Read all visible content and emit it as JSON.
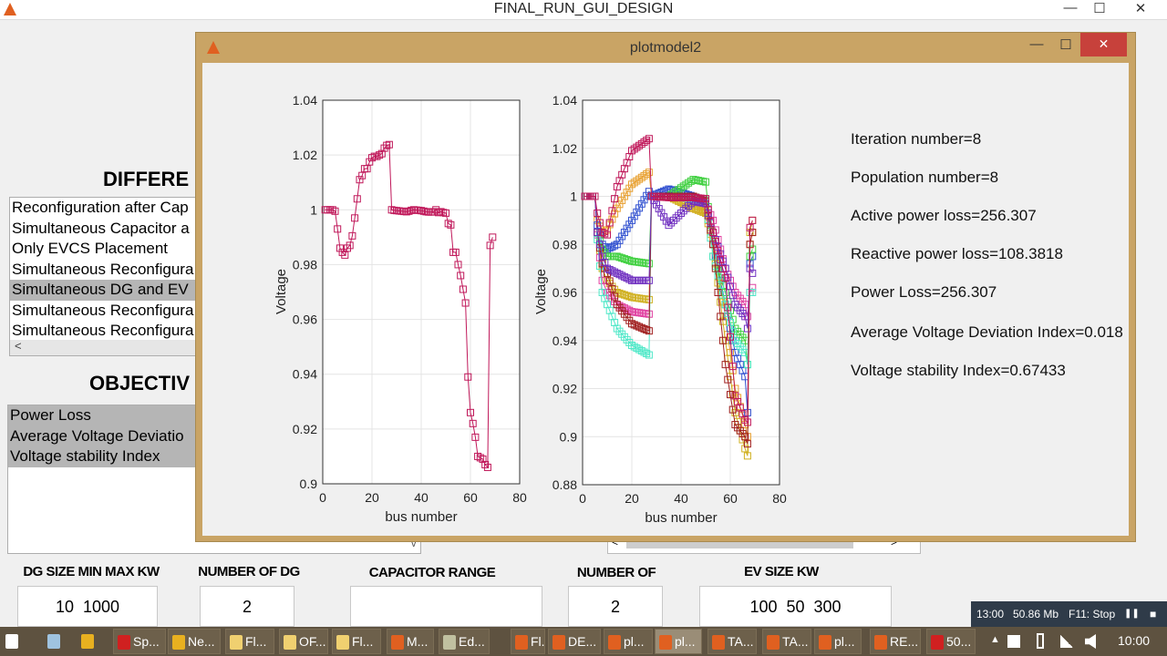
{
  "window": {
    "title": "FINAL_RUN_GUI_DESIGN",
    "minimize": "—",
    "maximize": "☐",
    "close": "✕"
  },
  "left": {
    "heading1": "DIFFERE",
    "cases": [
      "Reconfiguration after Cap",
      "Simultaneous Capacitor a",
      "Only EVCS Placement",
      "Simultaneous Reconfigura",
      "Simultaneous DG and EV",
      "Simultaneous Reconfigura",
      "Simultaneous Reconfigura"
    ],
    "cases_selected_index": 4,
    "scroll_left": "<",
    "heading2": "OBJECTIV",
    "objectives": [
      "Power Loss",
      "Average Voltage Deviatio",
      "Voltage stability Index"
    ],
    "dropdown_arrow": "v"
  },
  "inputs": {
    "dg_size_label": "DG SIZE MIN MAX KW",
    "dg_size_value": "10  1000",
    "num_dg_label": "NUMBER OF DG",
    "num_dg_value": "2",
    "cap_range_label": "CAPACITOR RANGE KVAR",
    "cap_range_value": "",
    "num_cap_label": "NUMBER OF CAPACITOR",
    "num_cap_value": "2",
    "ev_size_label": "EV SIZE KW",
    "ev_size_value": "100  50  300",
    "scroll_left": "<",
    "scroll_right": ">"
  },
  "popup": {
    "title": "plotmodel2",
    "minimize": "—",
    "maximize": "☐",
    "close": "✕",
    "results": [
      "Iteration number=8",
      "Population number=8",
      "Active power loss=256.307",
      "Reactive power loss=108.3818",
      "Power Loss=256.307",
      "Average Voltage Deviation Index=0.018",
      "Voltage stability Index=0.67433"
    ]
  },
  "chart_data": [
    {
      "type": "line",
      "xlabel": "bus number",
      "ylabel": "Voltage",
      "xlim": [
        0,
        80
      ],
      "ylim": [
        0.9,
        1.04
      ],
      "xticks": [
        0,
        20,
        40,
        60,
        80
      ],
      "yticks": [
        0.9,
        0.92,
        0.94,
        0.96,
        0.98,
        1,
        1.02,
        1.04
      ],
      "grid": true,
      "marker": "square",
      "series": [
        {
          "color": "#c0185a",
          "x": [
            1,
            2,
            3,
            4,
            5,
            6,
            7,
            8,
            9,
            10,
            11,
            12,
            13,
            14,
            15,
            16,
            17,
            18,
            19,
            20,
            21,
            22,
            23,
            24,
            25,
            26,
            27,
            28,
            29,
            30,
            31,
            32,
            33,
            34,
            35,
            36,
            37,
            38,
            39,
            40,
            41,
            42,
            43,
            44,
            45,
            46,
            47,
            48,
            49,
            50,
            51,
            52,
            53,
            54,
            55,
            56,
            57,
            58,
            59,
            60,
            61,
            62,
            63,
            64,
            65,
            66,
            67,
            68,
            69
          ],
          "y": [
            1.0,
            1.0,
            1.0,
            1.0,
            0.9995,
            0.993,
            0.986,
            0.9845,
            0.9835,
            0.986,
            0.987,
            0.9905,
            0.997,
            1.004,
            1.011,
            1.0125,
            1.015,
            1.015,
            1.0175,
            1.019,
            1.0195,
            1.0195,
            1.02,
            1.0205,
            1.0225,
            1.0235,
            1.0238,
            1.0,
            0.9998,
            0.9997,
            0.9996,
            0.9995,
            0.9994,
            0.9993,
            0.9995,
            0.9998,
            1.0,
            0.9999,
            0.9998,
            0.9997,
            0.9995,
            0.9993,
            0.9992,
            0.9992,
            0.9993,
            1.0,
            0.999,
            0.9993,
            0.999,
            0.9988,
            0.995,
            0.9945,
            0.9845,
            0.9845,
            0.98,
            0.976,
            0.971,
            0.966,
            0.939,
            0.926,
            0.922,
            0.917,
            0.91,
            0.9095,
            0.909,
            0.907,
            0.906,
            0.987,
            0.99
          ]
        }
      ]
    },
    {
      "type": "line",
      "xlabel": "bus number",
      "ylabel": "Voltage",
      "xlim": [
        0,
        80
      ],
      "ylim": [
        0.88,
        1.04
      ],
      "xticks": [
        0,
        20,
        40,
        60,
        80
      ],
      "yticks": [
        0.88,
        0.9,
        0.92,
        0.94,
        0.96,
        0.98,
        1,
        1.02,
        1.04
      ],
      "grid": true,
      "marker": "square",
      "x": [
        1,
        5,
        6,
        8,
        10,
        14,
        20,
        27,
        28,
        35,
        45,
        50,
        53,
        58,
        62,
        66,
        67,
        68,
        69
      ],
      "series": [
        {
          "color": "#e8a030",
          "y": [
            1,
            1,
            0.99,
            0.985,
            0.986,
            0.995,
            1.005,
            1.01,
            1.0,
            1.0,
            0.995,
            0.994,
            0.982,
            0.95,
            0.92,
            0.905,
            0.9,
            0.98,
            0.985
          ]
        },
        {
          "color": "#3050d0",
          "y": [
            1,
            1,
            0.988,
            0.98,
            0.978,
            0.98,
            0.99,
            1.002,
            1.0,
            1.003,
            1.0,
            0.998,
            0.98,
            0.955,
            0.935,
            0.925,
            0.91,
            0.972,
            0.975
          ]
        },
        {
          "color": "#40d040",
          "y": [
            1,
            1,
            0.985,
            0.978,
            0.975,
            0.975,
            0.973,
            0.972,
            1.0,
            1.0,
            1.007,
            1.006,
            0.975,
            0.96,
            0.945,
            0.94,
            0.93,
            0.975,
            0.978
          ]
        },
        {
          "color": "#d0b020",
          "y": [
            1,
            1,
            0.985,
            0.97,
            0.965,
            0.96,
            0.958,
            0.957,
            1.0,
            1.0,
            0.995,
            0.993,
            0.98,
            0.94,
            0.91,
            0.895,
            0.892,
            0.985,
            0.99
          ]
        },
        {
          "color": "#e040a0",
          "y": [
            1,
            1,
            0.984,
            0.965,
            0.96,
            0.955,
            0.952,
            0.951,
            1.0,
            1.0,
            0.999,
            0.997,
            0.99,
            0.97,
            0.96,
            0.955,
            0.95,
            0.96,
            0.962
          ]
        },
        {
          "color": "#50e8c8",
          "y": [
            1,
            1,
            0.982,
            0.96,
            0.955,
            0.945,
            0.938,
            0.934,
            1.0,
            1.0,
            0.999,
            0.998,
            0.975,
            0.955,
            0.94,
            0.935,
            0.93,
            0.96,
            0.96
          ]
        },
        {
          "color": "#a02020",
          "y": [
            1,
            1,
            0.985,
            0.972,
            0.968,
            0.955,
            0.947,
            0.944,
            1.0,
            1.0,
            1.0,
            0.998,
            0.98,
            0.93,
            0.905,
            0.9,
            0.897,
            0.98,
            0.985
          ]
        },
        {
          "color": "#7030c0",
          "y": [
            1,
            1,
            0.985,
            0.975,
            0.97,
            0.968,
            0.965,
            0.965,
            1.0,
            0.988,
            0.998,
            0.997,
            0.985,
            0.97,
            0.955,
            0.95,
            0.945,
            0.97,
            0.968
          ]
        },
        {
          "color": "#c0185a",
          "y": [
            1,
            1,
            0.993,
            0.985,
            0.984,
            1.004,
            1.019,
            1.024,
            1.0,
            0.9995,
            0.9995,
            0.999,
            0.985,
            0.966,
            0.917,
            0.907,
            0.906,
            0.987,
            0.99
          ]
        }
      ]
    }
  ],
  "recorder": {
    "time": "13:00",
    "size": "50.86 Mb",
    "stop": "F11: Stop",
    "pause": "❚❚",
    "stop_icon": "■"
  },
  "taskbar": {
    "items": [
      {
        "label": "",
        "icon": "start-icon",
        "color": "#ffffff"
      },
      {
        "label": "",
        "icon": "file-explorer-icon",
        "color": "#9fc3e0"
      },
      {
        "label": "",
        "icon": "chrome-icon",
        "color": "#e8b020"
      },
      {
        "label": "Sp...",
        "icon": "opera-icon",
        "color": "#d02020"
      },
      {
        "label": "Ne...",
        "icon": "chrome-icon",
        "color": "#e8b020"
      },
      {
        "label": "Fl...",
        "icon": "folder-icon",
        "color": "#f0d070"
      },
      {
        "label": "OF...",
        "icon": "folder-icon",
        "color": "#f0d070"
      },
      {
        "label": "Fl...",
        "icon": "folder-icon",
        "color": "#f0d070"
      },
      {
        "label": "M...",
        "icon": "matlab-icon",
        "color": "#e06020"
      },
      {
        "label": "Ed...",
        "icon": "editor-icon",
        "color": "#c0c0a0"
      },
      {
        "label": "Fl...",
        "icon": "matlab-figure-icon",
        "color": "#e06020"
      },
      {
        "label": "DE...",
        "icon": "matlab-figure-icon",
        "color": "#e06020"
      },
      {
        "label": "pl...",
        "icon": "matlab-figure-icon",
        "color": "#e06020"
      },
      {
        "label": "pl...",
        "icon": "matlab-figure-icon",
        "color": "#e06020",
        "active": true
      },
      {
        "label": "TA...",
        "icon": "matlab-figure-icon",
        "color": "#e06020"
      },
      {
        "label": "TA...",
        "icon": "matlab-figure-icon",
        "color": "#e06020"
      },
      {
        "label": "pl...",
        "icon": "matlab-figure-icon",
        "color": "#e06020"
      },
      {
        "label": "RE...",
        "icon": "matlab-figure-icon",
        "color": "#e06020"
      },
      {
        "label": "50...",
        "icon": "pdf-icon",
        "color": "#d02020"
      }
    ],
    "tray_arrow": "▲",
    "clock": "10:00"
  }
}
